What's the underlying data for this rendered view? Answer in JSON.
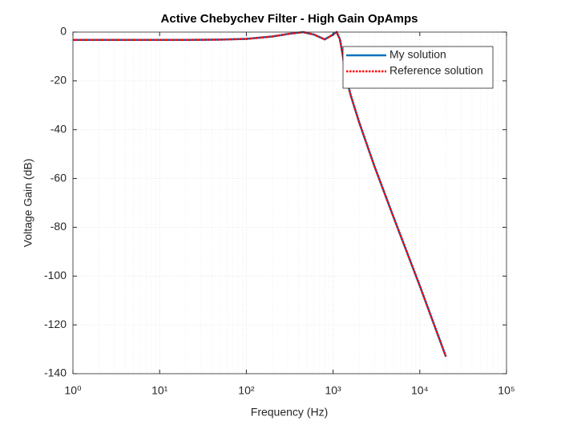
{
  "chart_data": {
    "type": "line",
    "title": "Active Chebychev Filter - High Gain OpAmps",
    "x_label": "Frequency (Hz)",
    "y_label": "Voltage Gain (dB)",
    "x": [
      1,
      2,
      5,
      10,
      20,
      50,
      100,
      200,
      300,
      450,
      600,
      800,
      950,
      1100,
      1200,
      1300,
      1400,
      1600,
      2000,
      3000,
      5000,
      10000,
      20000
    ],
    "series": [
      {
        "name": "My solution",
        "color": "#0072bd",
        "line_style": "solid",
        "values": [
          -3.2,
          -3.2,
          -3.2,
          -3.2,
          -3.2,
          -3.1,
          -2.8,
          -1.8,
          -0.8,
          0,
          -1,
          -3,
          -1.5,
          0,
          -3,
          -10,
          -18,
          -26,
          -37,
          -55,
          -76,
          -104,
          -133
        ]
      },
      {
        "name": "Reference solution",
        "color": "#ff0000",
        "line_style": "dotted",
        "values": [
          -3.2,
          -3.2,
          -3.2,
          -3.2,
          -3.2,
          -3.1,
          -2.8,
          -1.8,
          -0.8,
          0,
          -1,
          -3,
          -1.5,
          0,
          -3,
          -10,
          -18,
          -26,
          -37,
          -55,
          -76,
          -104,
          -133
        ]
      }
    ],
    "xscale": "log",
    "xlim": [
      1,
      100000
    ],
    "xticks": [
      {
        "value": 1,
        "label": "10⁰"
      },
      {
        "value": 10,
        "label": "10¹"
      },
      {
        "value": 100,
        "label": "10²"
      },
      {
        "value": 1000,
        "label": "10³"
      },
      {
        "value": 10000,
        "label": "10⁴"
      },
      {
        "value": 100000,
        "label": "10⁵"
      }
    ],
    "ylim": [
      -140,
      0
    ],
    "yticks": [
      0,
      -20,
      -40,
      -60,
      -80,
      -100,
      -120,
      -140
    ],
    "grid": true,
    "legend": "northeast"
  }
}
